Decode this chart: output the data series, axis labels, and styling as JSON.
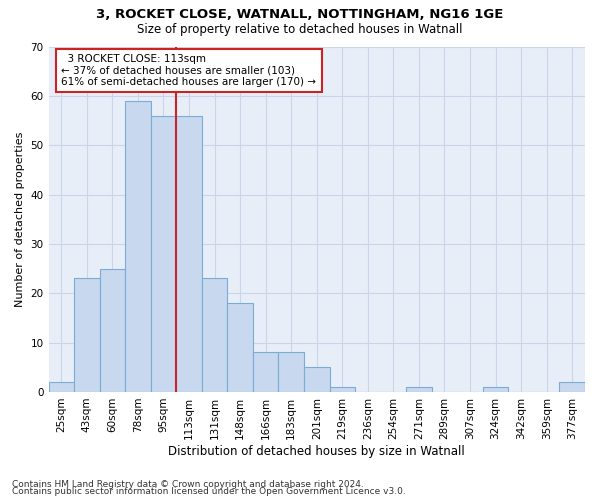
{
  "title1": "3, ROCKET CLOSE, WATNALL, NOTTINGHAM, NG16 1GE",
  "title2": "Size of property relative to detached houses in Watnall",
  "xlabel": "Distribution of detached houses by size in Watnall",
  "ylabel": "Number of detached properties",
  "footnote1": "Contains HM Land Registry data © Crown copyright and database right 2024.",
  "footnote2": "Contains public sector information licensed under the Open Government Licence v3.0.",
  "annotation_line1": "  3 ROCKET CLOSE: 113sqm",
  "annotation_line2": "← 37% of detached houses are smaller (103)",
  "annotation_line3": "61% of semi-detached houses are larger (170) →",
  "categories": [
    "25sqm",
    "43sqm",
    "60sqm",
    "78sqm",
    "95sqm",
    "113sqm",
    "131sqm",
    "148sqm",
    "166sqm",
    "183sqm",
    "201sqm",
    "219sqm",
    "236sqm",
    "254sqm",
    "271sqm",
    "289sqm",
    "307sqm",
    "324sqm",
    "342sqm",
    "359sqm",
    "377sqm"
  ],
  "values": [
    2,
    23,
    25,
    59,
    56,
    56,
    23,
    18,
    8,
    8,
    5,
    1,
    0,
    0,
    1,
    0,
    0,
    1,
    0,
    0,
    2
  ],
  "bar_color": "#c8d8ef",
  "bar_edge_color": "#7aadd4",
  "vline_color": "#cc2222",
  "vline_x": 4.5,
  "annotation_box_color": "#cc2222",
  "grid_color": "#ccd5e8",
  "bg_color": "#e8eef8",
  "ylim": [
    0,
    70
  ],
  "yticks": [
    0,
    10,
    20,
    30,
    40,
    50,
    60,
    70
  ],
  "title1_fontsize": 9.5,
  "title2_fontsize": 8.5,
  "xlabel_fontsize": 8.5,
  "ylabel_fontsize": 8,
  "tick_fontsize": 7.5,
  "ann_fontsize": 7.5,
  "footnote_fontsize": 6.5
}
